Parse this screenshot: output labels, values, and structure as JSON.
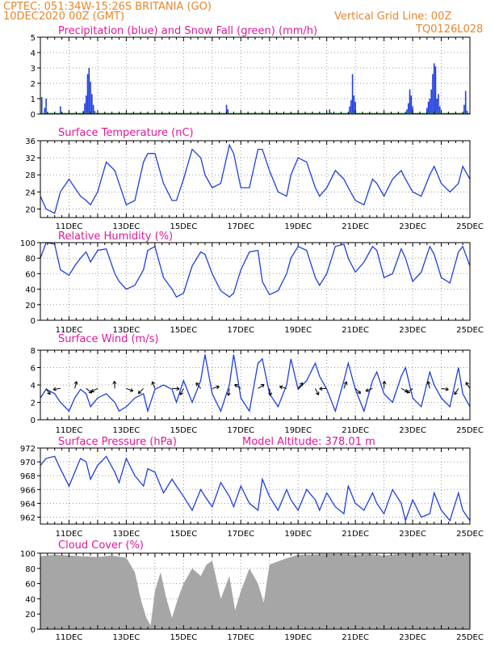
{
  "header": {
    "line1": "CPTEC:   051:34W-15:26S   BRITANIA (GO)",
    "line2_left": "10DEC2020 00Z (GMT)",
    "grid_note": "Vertical Grid Line: 00Z",
    "code": "TQ0126L028"
  },
  "x_ticks": [
    "11DEC",
    "13DEC",
    "15DEC",
    "17DEC",
    "19DEC",
    "21DEC",
    "23DEC",
    "25DEC"
  ],
  "colors": {
    "header": "#e8862a",
    "title": "#e0189a",
    "line": "#1f3fe0",
    "snow": "#1aa01a",
    "cloud": "#a6a6a6"
  },
  "chart_data": [
    {
      "type": "bar",
      "title": "Precipitation (blue) and Snow Fall (green) (mm/h)",
      "ylim": [
        0,
        5
      ],
      "yticks": [
        0,
        1,
        2,
        3,
        4,
        5
      ],
      "series": [
        {
          "name": "Precipitation",
          "values": [
            [
              10.05,
              1.1
            ],
            [
              10.15,
              0.4
            ],
            [
              10.2,
              1.0
            ],
            [
              10.7,
              0.5
            ],
            [
              10.75,
              0.1
            ],
            [
              11.5,
              0.2
            ],
            [
              11.55,
              0.7
            ],
            [
              11.6,
              1.2
            ],
            [
              11.65,
              2.6
            ],
            [
              11.7,
              3.0
            ],
            [
              11.75,
              2.1
            ],
            [
              11.8,
              1.3
            ],
            [
              11.85,
              0.6
            ],
            [
              11.9,
              0.2
            ],
            [
              16.5,
              0.6
            ],
            [
              16.55,
              0.3
            ],
            [
              20.1,
              0.3
            ],
            [
              20.15,
              0.1
            ],
            [
              20.8,
              0.5
            ],
            [
              20.85,
              0.9
            ],
            [
              20.9,
              2.6
            ],
            [
              20.95,
              1.2
            ],
            [
              21.0,
              0.8
            ],
            [
              22.8,
              0.3
            ],
            [
              22.85,
              0.7
            ],
            [
              22.9,
              1.6
            ],
            [
              22.95,
              1.2
            ],
            [
              23.0,
              0.5
            ],
            [
              23.5,
              0.4
            ],
            [
              23.55,
              0.8
            ],
            [
              23.6,
              1.0
            ],
            [
              23.65,
              1.6
            ],
            [
              23.7,
              2.6
            ],
            [
              23.75,
              3.3
            ],
            [
              23.8,
              3.1
            ],
            [
              23.85,
              1.0
            ],
            [
              23.9,
              1.3
            ],
            [
              23.95,
              0.5
            ],
            [
              24.8,
              0.6
            ],
            [
              24.85,
              1.5
            ],
            [
              24.9,
              0.2
            ]
          ]
        },
        {
          "name": "Snow Fall",
          "values": [
            0
          ]
        }
      ]
    },
    {
      "type": "line",
      "title": "Surface Temperature (nC)",
      "ylim": [
        18,
        36
      ],
      "yticks": [
        20,
        24,
        28,
        32,
        36
      ],
      "x": [
        10.0,
        10.2,
        10.5,
        10.7,
        11.0,
        11.2,
        11.4,
        11.6,
        11.75,
        12.0,
        12.3,
        12.6,
        12.75,
        13.0,
        13.3,
        13.6,
        13.75,
        14.0,
        14.3,
        14.6,
        14.75,
        15.0,
        15.3,
        15.6,
        15.75,
        16.0,
        16.3,
        16.6,
        16.75,
        17.0,
        17.3,
        17.6,
        17.75,
        18.0,
        18.3,
        18.6,
        18.75,
        19.0,
        19.3,
        19.6,
        19.75,
        20.0,
        20.3,
        20.6,
        20.75,
        21.0,
        21.3,
        21.6,
        21.75,
        22.0,
        22.3,
        22.6,
        22.75,
        23.0,
        23.3,
        23.6,
        23.75,
        24.0,
        24.3,
        24.6,
        24.75,
        25.0
      ],
      "values": [
        23,
        20,
        19,
        24,
        27,
        25,
        23,
        22,
        21,
        24,
        31,
        29,
        26,
        21,
        22,
        31,
        33,
        33,
        26,
        22,
        22,
        27,
        34,
        32,
        28,
        25,
        26,
        35,
        33,
        25,
        25,
        34,
        34,
        29,
        24,
        23,
        28,
        32,
        31,
        25,
        23,
        25,
        29,
        27,
        25,
        22,
        21,
        27,
        26,
        23,
        27,
        29,
        27,
        24,
        23,
        28,
        30,
        26,
        24,
        26,
        30,
        27
      ]
    },
    {
      "type": "line",
      "title": "Relative Humidity (%)",
      "ylim": [
        0,
        100
      ],
      "yticks": [
        0,
        20,
        40,
        60,
        80,
        100
      ],
      "x": [
        10.0,
        10.2,
        10.5,
        10.7,
        11.0,
        11.2,
        11.4,
        11.6,
        11.75,
        12.0,
        12.3,
        12.6,
        12.75,
        13.0,
        13.3,
        13.6,
        13.75,
        14.0,
        14.3,
        14.6,
        14.75,
        15.0,
        15.3,
        15.6,
        15.75,
        16.0,
        16.3,
        16.6,
        16.75,
        17.0,
        17.3,
        17.6,
        17.75,
        18.0,
        18.3,
        18.6,
        18.75,
        19.0,
        19.3,
        19.6,
        19.75,
        20.0,
        20.3,
        20.6,
        20.75,
        21.0,
        21.3,
        21.6,
        21.75,
        22.0,
        22.3,
        22.6,
        22.75,
        23.0,
        23.3,
        23.6,
        23.75,
        24.0,
        24.3,
        24.6,
        24.75,
        25.0
      ],
      "values": [
        80,
        100,
        98,
        65,
        58,
        70,
        80,
        88,
        75,
        90,
        92,
        60,
        50,
        40,
        45,
        65,
        90,
        95,
        55,
        40,
        30,
        35,
        70,
        88,
        85,
        60,
        38,
        30,
        35,
        65,
        88,
        90,
        50,
        33,
        38,
        60,
        80,
        95,
        90,
        55,
        45,
        60,
        95,
        98,
        80,
        62,
        75,
        95,
        90,
        55,
        60,
        92,
        80,
        50,
        62,
        95,
        85,
        55,
        48,
        88,
        95,
        70
      ]
    },
    {
      "type": "line",
      "title": "Surface Wind (m/s)",
      "ylim": [
        0,
        8
      ],
      "yticks": [
        0,
        2,
        4,
        6,
        8
      ],
      "x": [
        10.0,
        10.2,
        10.5,
        10.7,
        11.0,
        11.2,
        11.4,
        11.6,
        11.75,
        12.0,
        12.3,
        12.6,
        12.75,
        13.0,
        13.3,
        13.6,
        13.75,
        14.0,
        14.3,
        14.6,
        14.75,
        15.0,
        15.3,
        15.6,
        15.75,
        16.0,
        16.3,
        16.6,
        16.75,
        17.0,
        17.3,
        17.6,
        17.75,
        18.0,
        18.3,
        18.6,
        18.75,
        19.0,
        19.3,
        19.6,
        19.75,
        20.0,
        20.3,
        20.6,
        20.75,
        21.0,
        21.3,
        21.6,
        21.75,
        22.0,
        22.3,
        22.6,
        22.75,
        23.0,
        23.3,
        23.6,
        23.75,
        24.0,
        24.3,
        24.6,
        24.75,
        25.0
      ],
      "values": [
        2.5,
        3.5,
        3.0,
        2.0,
        1.0,
        2.5,
        3.5,
        3.0,
        1.5,
        2.5,
        3.0,
        2.0,
        1.0,
        1.5,
        2.5,
        3.0,
        1.0,
        3.5,
        4.0,
        3.5,
        2.0,
        4.5,
        2.0,
        4.5,
        7.5,
        3.0,
        1.0,
        4.0,
        7.5,
        2.5,
        1.0,
        6.5,
        7.0,
        3.0,
        1.5,
        4.0,
        7.0,
        3.5,
        4.5,
        6.5,
        5.0,
        3.5,
        1.0,
        4.5,
        6.5,
        3.5,
        1.0,
        4.5,
        5.5,
        3.0,
        2.0,
        5.0,
        6.0,
        2.5,
        1.5,
        5.5,
        4.0,
        2.5,
        1.5,
        6.0,
        3.0,
        1.5
      ]
    },
    {
      "type": "line",
      "title": "Surface Pressure (hPa)",
      "annotation": "Model Altitude: 378.01 m",
      "ylim": [
        961,
        972
      ],
      "yticks": [
        962,
        964,
        966,
        968,
        970,
        972
      ],
      "x": [
        10.0,
        10.2,
        10.5,
        10.7,
        11.0,
        11.2,
        11.4,
        11.6,
        11.75,
        12.0,
        12.3,
        12.6,
        12.75,
        13.0,
        13.3,
        13.6,
        13.75,
        14.0,
        14.3,
        14.6,
        14.75,
        15.0,
        15.3,
        15.6,
        15.75,
        16.0,
        16.3,
        16.6,
        16.75,
        17.0,
        17.3,
        17.6,
        17.75,
        18.0,
        18.3,
        18.6,
        18.75,
        19.0,
        19.3,
        19.6,
        19.75,
        20.0,
        20.3,
        20.6,
        20.75,
        21.0,
        21.3,
        21.6,
        21.75,
        22.0,
        22.3,
        22.6,
        22.75,
        23.0,
        23.3,
        23.6,
        23.75,
        24.0,
        24.3,
        24.6,
        24.75,
        25.0
      ],
      "values": [
        969.5,
        970.5,
        970.8,
        969.0,
        966.5,
        968.5,
        970.5,
        970.0,
        967.5,
        969.5,
        970.8,
        968.5,
        967.0,
        970.5,
        968.0,
        966.5,
        969.0,
        968.5,
        965.5,
        967.5,
        966.5,
        965.0,
        963.0,
        966.0,
        965.0,
        963.5,
        967.0,
        965.0,
        963.5,
        966.5,
        964.0,
        963.0,
        967.5,
        965.0,
        963.0,
        966.0,
        964.5,
        963.0,
        966.0,
        964.5,
        963.0,
        965.5,
        963.5,
        962.5,
        966.5,
        964.0,
        963.0,
        965.5,
        964.0,
        962.5,
        966.0,
        964.0,
        961.5,
        964.5,
        962.0,
        962.5,
        965.5,
        963.0,
        961.5,
        965.5,
        963.0,
        961.5
      ]
    },
    {
      "type": "area",
      "title": "Cloud Cover (%)",
      "ylim": [
        0,
        100
      ],
      "yticks": [
        0,
        20,
        40,
        60,
        80,
        100
      ],
      "x": [
        10.0,
        10.5,
        11.0,
        11.5,
        12.0,
        12.5,
        13.0,
        13.3,
        13.5,
        13.7,
        13.85,
        14.0,
        14.2,
        14.4,
        14.6,
        14.8,
        15.0,
        15.3,
        15.6,
        15.8,
        16.0,
        16.3,
        16.6,
        16.8,
        17.0,
        17.3,
        17.6,
        17.8,
        18.0,
        18.5,
        19.0,
        19.5,
        20.0,
        20.5,
        21.0,
        21.5,
        22.0,
        22.5,
        23.0,
        23.5,
        24.0,
        24.5,
        25.0
      ],
      "values": [
        96,
        98,
        97,
        96,
        95,
        97,
        94,
        75,
        40,
        15,
        5,
        50,
        75,
        40,
        15,
        40,
        60,
        80,
        70,
        85,
        90,
        40,
        70,
        25,
        50,
        80,
        60,
        35,
        85,
        92,
        98,
        98,
        99,
        99,
        98,
        99,
        97,
        99,
        99,
        99,
        98,
        99,
        99
      ]
    }
  ]
}
